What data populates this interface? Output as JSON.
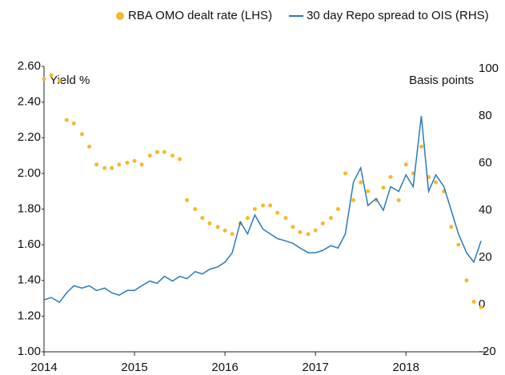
{
  "chart_data": {
    "type": "scatter-line",
    "x": [
      2014,
      2014.08,
      2014.17,
      2014.25,
      2014.33,
      2014.42,
      2014.5,
      2014.58,
      2014.67,
      2014.75,
      2014.83,
      2014.92,
      2015,
      2015.08,
      2015.17,
      2015.25,
      2015.33,
      2015.42,
      2015.5,
      2015.58,
      2015.67,
      2015.75,
      2015.83,
      2015.92,
      2016,
      2016.08,
      2016.17,
      2016.25,
      2016.33,
      2016.42,
      2016.5,
      2016.58,
      2016.67,
      2016.75,
      2016.83,
      2016.92,
      2017,
      2017.08,
      2017.17,
      2017.25,
      2017.33,
      2017.42,
      2017.5,
      2017.58,
      2017.67,
      2017.75,
      2017.83,
      2017.92,
      2018,
      2018.08,
      2018.17,
      2018.25,
      2018.33,
      2018.42,
      2018.5,
      2018.58,
      2018.67,
      2018.75,
      2018.83
    ],
    "series": [
      {
        "name": "RBA OMO dealt rate (LHS)",
        "color": "#f5b82e",
        "kind": "scatter",
        "axis": "y",
        "values": [
          2.53,
          2.55,
          2.52,
          2.3,
          2.28,
          2.22,
          2.15,
          2.05,
          2.03,
          2.03,
          2.05,
          2.06,
          2.07,
          2.05,
          2.1,
          2.12,
          2.12,
          2.1,
          2.08,
          1.85,
          1.8,
          1.75,
          1.72,
          1.7,
          1.68,
          1.66,
          1.72,
          1.75,
          1.8,
          1.82,
          1.82,
          1.78,
          1.75,
          1.7,
          1.67,
          1.66,
          1.68,
          1.72,
          1.75,
          1.8,
          2.0,
          1.85,
          1.95,
          1.9,
          1.85,
          1.92,
          1.98,
          1.85,
          2.05,
          2.0,
          2.15,
          1.98,
          1.95,
          1.9,
          1.7,
          1.6,
          1.4,
          1.28,
          1.25
        ]
      },
      {
        "name": "30 day Repo spread to OIS (RHS)",
        "color": "#2a7ab9",
        "kind": "line",
        "axis": "y2",
        "values": [
          2,
          3,
          1,
          5,
          8,
          7,
          8,
          6,
          7,
          5,
          4,
          6,
          6,
          8,
          10,
          9,
          12,
          10,
          12,
          11,
          14,
          13,
          15,
          16,
          18,
          22,
          35,
          30,
          38,
          32,
          30,
          28,
          27,
          26,
          24,
          22,
          22,
          23,
          25,
          24,
          30,
          52,
          58,
          42,
          45,
          40,
          50,
          48,
          55,
          50,
          80,
          48,
          55,
          50,
          40,
          30,
          22,
          18,
          27
        ]
      }
    ],
    "y_label": "Yield %",
    "y2_label": "Basis points",
    "xlim": [
      2014,
      2018.9
    ],
    "xticks": [
      2014,
      2015,
      2016,
      2017,
      2018
    ],
    "ylim": [
      1.0,
      2.6
    ],
    "yticks": [
      {
        "value": 1.0,
        "label": "1.00"
      },
      {
        "value": 1.2,
        "label": "1.20"
      },
      {
        "value": 1.4,
        "label": "1.40"
      },
      {
        "value": 1.6,
        "label": "1.60"
      },
      {
        "value": 1.8,
        "label": "1.80"
      },
      {
        "value": 2.0,
        "label": "2.00"
      },
      {
        "value": 2.2,
        "label": "2.20"
      },
      {
        "value": 2.4,
        "label": "2.40"
      },
      {
        "value": 2.6,
        "label": "2.60"
      }
    ],
    "y2lim": [
      -20,
      101
    ],
    "y2ticks": [
      -20,
      0,
      20,
      40,
      60,
      80,
      100
    ],
    "legend": "top"
  }
}
